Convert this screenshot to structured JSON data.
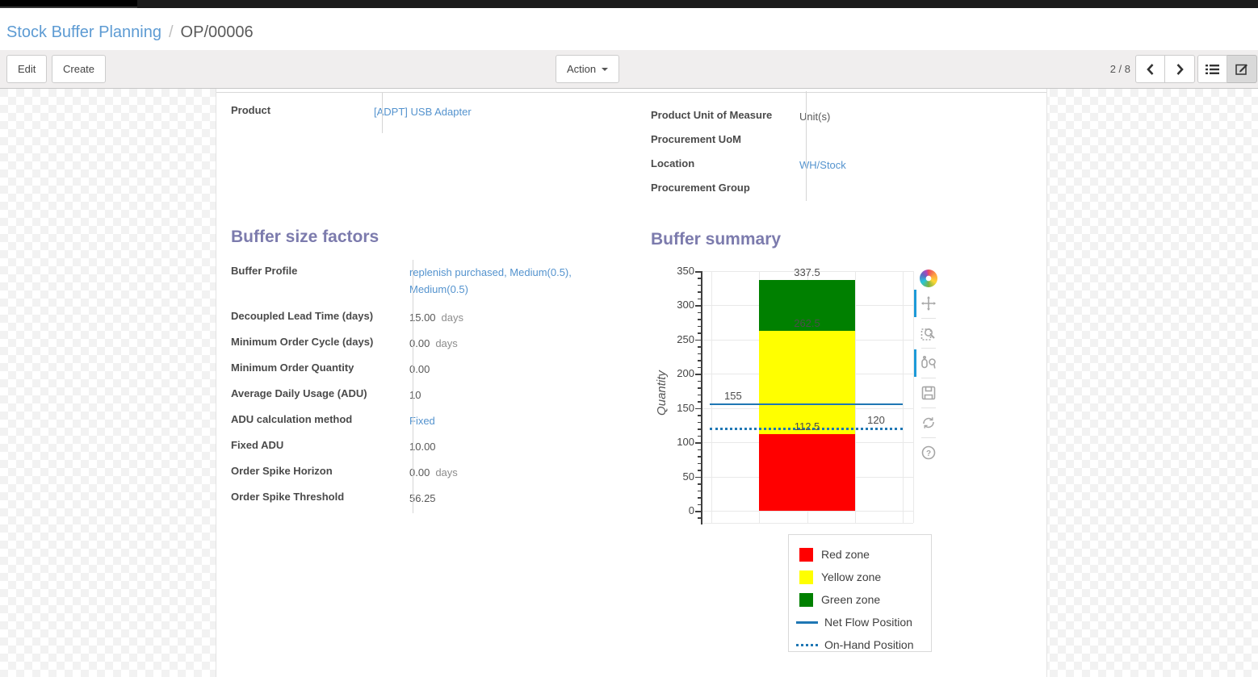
{
  "accent": {
    "link_color": "#5493ce",
    "heading_color": "#7c7bad",
    "series_blue": "#1f77b4",
    "modebar_active_color": "#1d9ad8"
  },
  "breadcrumb": {
    "parent": "Stock Buffer Planning",
    "separator": "/",
    "current": "OP/00006"
  },
  "toolbar": {
    "edit_label": "Edit",
    "create_label": "Create",
    "action_label": "Action",
    "pager": "2 / 8"
  },
  "info_left": {
    "rows": [
      {
        "label": "Product",
        "value": "[ADPT] USB Adapter",
        "link": true
      }
    ]
  },
  "info_right": {
    "rows": [
      {
        "label": "Product Unit of Measure",
        "value": "Unit(s)"
      },
      {
        "label": "Procurement UoM",
        "value": ""
      },
      {
        "label": "Location",
        "value": "WH/Stock",
        "link": true
      },
      {
        "label": "Procurement Group",
        "value": ""
      }
    ]
  },
  "buffer_factors": {
    "title": "Buffer size factors",
    "rows": [
      {
        "label": "Buffer Profile",
        "value": "replenish purchased, Medium(0.5), Medium(0.5)",
        "link": true,
        "tall": true
      },
      {
        "label": "Decoupled Lead Time (days)",
        "value": "15.00",
        "suffix": "days"
      },
      {
        "label": "Minimum Order Cycle (days)",
        "value": "0.00",
        "suffix": "days"
      },
      {
        "label": "Minimum Order Quantity",
        "value": "0.00"
      },
      {
        "label": "Average Daily Usage (ADU)",
        "value": "10"
      },
      {
        "label": "ADU calculation method",
        "value": "Fixed",
        "link": true
      },
      {
        "label": "Fixed ADU",
        "value": "10.00"
      },
      {
        "label": "Order Spike Horizon",
        "value": "0.00",
        "suffix": "days"
      },
      {
        "label": "Order Spike Threshold",
        "value": "56.25"
      }
    ]
  },
  "buffer_summary": {
    "title": "Buffer summary"
  },
  "chart_data": {
    "type": "bar",
    "title": "Buffer summary",
    "xlabel": "",
    "ylabel": "Quantity",
    "ylim": [
      0,
      350
    ],
    "ytick_step": 50,
    "yminor_step": 10,
    "grid": true,
    "zones": [
      {
        "name": "Red zone",
        "from": 0,
        "to": 112.5,
        "color": "#ff0000",
        "top_label": "112.5"
      },
      {
        "name": "Yellow zone",
        "from": 112.5,
        "to": 262.5,
        "color": "#ffff00",
        "top_label": "262.5"
      },
      {
        "name": "Green zone",
        "from": 262.5,
        "to": 337.5,
        "color": "#008000",
        "top_label": "337.5"
      }
    ],
    "lines": [
      {
        "name": "Net Flow Position",
        "value": 155,
        "style": "solid",
        "color": "#1f77b4",
        "label": "155",
        "label_side": "left"
      },
      {
        "name": "On-Hand Position",
        "value": 120,
        "style": "dotted",
        "color": "#1f77b4",
        "label": "120",
        "label_side": "right"
      }
    ],
    "legend_entries": [
      "Red zone",
      "Yellow zone",
      "Green zone",
      "Net Flow Position",
      "On-Hand Position"
    ],
    "legend_position": "below-right"
  },
  "legend": {
    "items": [
      {
        "label": "Red zone",
        "type": "square",
        "color": "#ff0000"
      },
      {
        "label": "Yellow zone",
        "type": "square",
        "color": "#ffff00"
      },
      {
        "label": "Green zone",
        "type": "square",
        "color": "#008000"
      },
      {
        "label": "Net Flow Position",
        "type": "line",
        "color": "#1f77b4"
      },
      {
        "label": "On-Hand Position",
        "type": "dotted",
        "color": "#1f77b4"
      }
    ]
  },
  "modebar": {
    "icons": [
      "plotly-logo",
      "pan",
      "box-zoom",
      "compare-hover",
      "save-snapshot",
      "reset-axes",
      "help"
    ],
    "active_groups": [
      "pan",
      "compare-hover"
    ]
  }
}
